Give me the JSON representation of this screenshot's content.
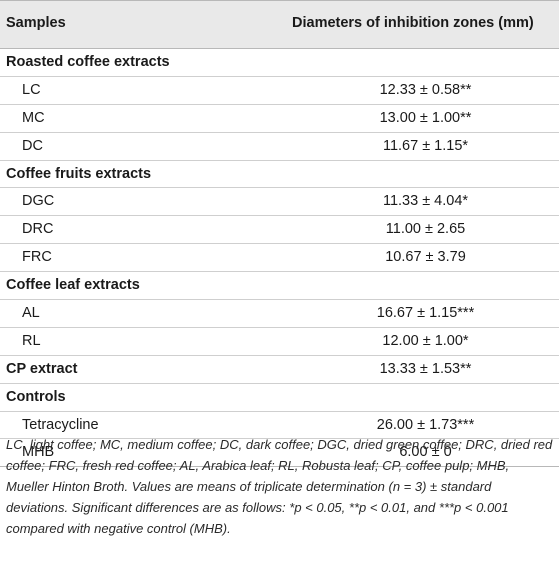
{
  "header": {
    "col1": "Samples",
    "col2": "Diameters of inhibition zones (mm)"
  },
  "rows": [
    {
      "kind": "group",
      "label": "Roasted coffee extracts",
      "value": ""
    },
    {
      "kind": "item",
      "label": "LC",
      "value": "12.33 ± 0.58**"
    },
    {
      "kind": "item",
      "label": "MC",
      "value": "13.00 ± 1.00**"
    },
    {
      "kind": "item",
      "label": "DC",
      "value": "11.67 ± 1.15*"
    },
    {
      "kind": "group",
      "label": "Coffee fruits extracts",
      "value": ""
    },
    {
      "kind": "item",
      "label": "DGC",
      "value": "11.33 ± 4.04*"
    },
    {
      "kind": "item",
      "label": "DRC",
      "value": "11.00 ± 2.65"
    },
    {
      "kind": "item",
      "label": "FRC",
      "value": "10.67 ± 3.79"
    },
    {
      "kind": "group",
      "label": "Coffee leaf extracts",
      "value": ""
    },
    {
      "kind": "item",
      "label": "AL",
      "value": "16.67 ± 1.15***"
    },
    {
      "kind": "item",
      "label": "RL",
      "value": "12.00 ± 1.00*"
    },
    {
      "kind": "group",
      "label": "CP extract",
      "value": "13.33 ± 1.53**"
    },
    {
      "kind": "group",
      "label": "Controls",
      "value": ""
    },
    {
      "kind": "item",
      "label": "Tetracycline",
      "value": "26.00 ± 1.73***"
    },
    {
      "kind": "item",
      "label": "MHB",
      "value": "6.00 ± 0"
    }
  ],
  "footnote": "LC, light coffee; MC, medium coffee; DC, dark coffee; DGC, dried green coffee; DRC, dried red coffee; FRC, fresh red coffee; AL, Arabica leaf; RL, Robusta leaf; CP, coffee pulp; MHB, Mueller Hinton Broth. Values are means of triplicate determination (n = 3) ± standard deviations. Significant differences are as follows: *p < 0.05, **p < 0.01, and ***p < 0.001 compared with negative control (MHB)."
}
